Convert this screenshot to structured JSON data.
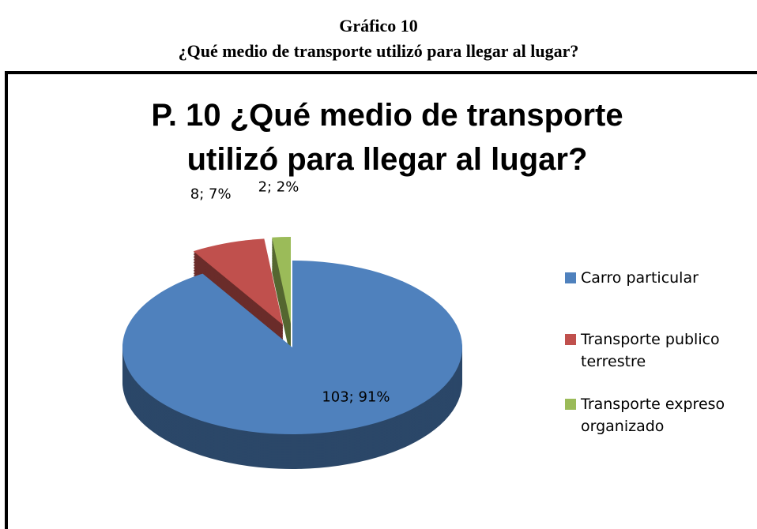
{
  "header": {
    "title": "Gráfico 10",
    "subtitle": "¿Qué medio de transporte utilizó para llegar al lugar?"
  },
  "chart_data": {
    "type": "pie3d",
    "title": "P. 10 ¿Qué medio de transporte utilizó para llegar al lugar?",
    "categories": [
      "Carro particular",
      "Transporte publico terrestre",
      "Transporte expreso organizado"
    ],
    "values": [
      103,
      8,
      2
    ],
    "value_labels": [
      "103; 91%",
      "8; 7%",
      "2; 2%"
    ],
    "colors": [
      "#4f81bd",
      "#c0504d",
      "#9bbb59"
    ],
    "legend": "right"
  }
}
